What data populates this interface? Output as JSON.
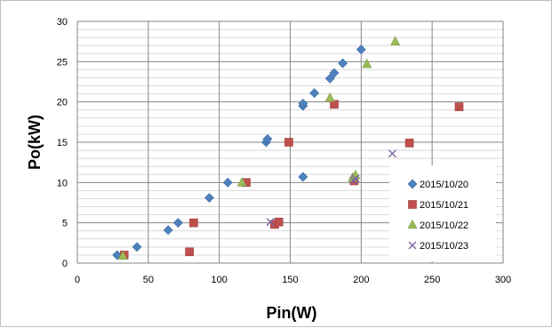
{
  "chart_data": {
    "type": "scatter",
    "title": "",
    "xlabel": "Pin(W)",
    "ylabel": "Po(kW)",
    "xlim": [
      0,
      300
    ],
    "ylim": [
      0,
      30
    ],
    "x_ticks": [
      0,
      50,
      100,
      150,
      200,
      250,
      300
    ],
    "y_ticks": [
      0,
      5,
      10,
      15,
      20,
      25,
      30
    ],
    "grid": "major",
    "legend_position": "right",
    "series": [
      {
        "name": "2015/10/20",
        "marker": "diamond",
        "color": "#4f81bd",
        "points": [
          [
            28,
            1.0
          ],
          [
            42,
            2.0
          ],
          [
            64,
            4.1
          ],
          [
            71,
            5.0
          ],
          [
            93,
            8.1
          ],
          [
            106,
            10.0
          ],
          [
            133,
            15.0
          ],
          [
            134,
            15.4
          ],
          [
            159,
            10.7
          ],
          [
            159,
            19.5
          ],
          [
            159,
            19.8
          ],
          [
            167,
            21.1
          ],
          [
            178,
            22.9
          ],
          [
            181,
            23.6
          ],
          [
            187,
            24.8
          ],
          [
            200,
            26.5
          ]
        ]
      },
      {
        "name": "2015/10/21",
        "marker": "square",
        "color": "#c0504d",
        "points": [
          [
            33,
            1.0
          ],
          [
            79,
            1.4
          ],
          [
            82,
            5.0
          ],
          [
            119,
            10.0
          ],
          [
            139,
            4.8
          ],
          [
            142,
            5.1
          ],
          [
            149,
            15.0
          ],
          [
            181,
            19.7
          ],
          [
            195,
            10.2
          ],
          [
            234,
            14.9
          ],
          [
            269,
            19.4
          ]
        ]
      },
      {
        "name": "2015/10/22",
        "marker": "triangle",
        "color": "#9bbb59",
        "points": [
          [
            32,
            0.9
          ],
          [
            116,
            10.0
          ],
          [
            178,
            20.5
          ],
          [
            194,
            10.6
          ],
          [
            196,
            10.9
          ],
          [
            204,
            24.7
          ],
          [
            224,
            27.5
          ]
        ]
      },
      {
        "name": "2015/10/23",
        "marker": "x",
        "color": "#8064a2",
        "points": [
          [
            136,
            5.1
          ],
          [
            195,
            10.2
          ],
          [
            196,
            10.5
          ],
          [
            222,
            13.6
          ]
        ]
      }
    ]
  }
}
